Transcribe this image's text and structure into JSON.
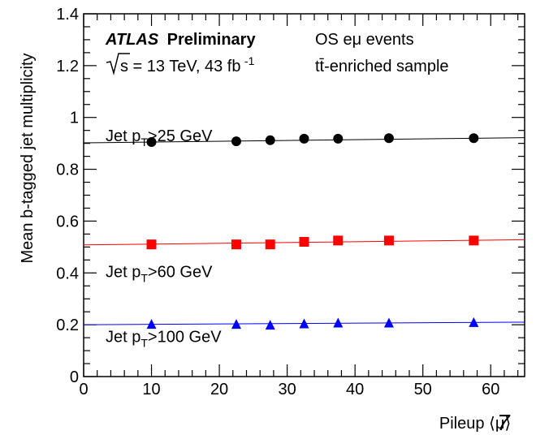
{
  "chart_data": {
    "type": "scatter",
    "title": "",
    "xlabel": "Pileup ⟨μ⟩",
    "ylabel": "Mean b-tagged jet multiplicity",
    "xlim": [
      0,
      65
    ],
    "ylim": [
      0,
      1.4
    ],
    "x_ticks": [
      "0",
      "10",
      "20",
      "30",
      "40",
      "50",
      "60"
    ],
    "y_ticks": [
      "0",
      "0.2",
      "0.4",
      "0.6",
      "0.8",
      "1",
      "1.2",
      "1.4"
    ],
    "grid": false,
    "legend": "none",
    "series": [
      {
        "name": "Jet pT>25 GeV",
        "label_main": "Jet p",
        "label_sub": "T",
        "label_rest": ">25 GeV",
        "label_y": 0.93,
        "marker": "circle",
        "color": "#000000",
        "x": [
          10,
          22.5,
          27.5,
          32.5,
          37.5,
          45,
          57.5
        ],
        "values": [
          0.905,
          0.908,
          0.912,
          0.918,
          0.918,
          0.92,
          0.92
        ],
        "fit": [
          0.902,
          0.922
        ]
      },
      {
        "name": "Jet pT>60 GeV",
        "label_main": "Jet p",
        "label_sub": "T",
        "label_rest": ">60 GeV",
        "label_y": 0.405,
        "marker": "square",
        "color": "#ff0000",
        "x": [
          10,
          22.5,
          27.5,
          32.5,
          37.5,
          45,
          57.5
        ],
        "values": [
          0.51,
          0.51,
          0.51,
          0.52,
          0.525,
          0.525,
          0.525
        ],
        "fit": [
          0.508,
          0.528
        ]
      },
      {
        "name": "Jet pT>100 GeV",
        "label_main": "Jet p",
        "label_sub": "T",
        "label_rest": ">100 GeV",
        "label_y": 0.155,
        "marker": "triangle",
        "color": "#0000ff",
        "x": [
          10,
          22.5,
          27.5,
          32.5,
          37.5,
          45,
          57.5
        ],
        "values": [
          0.2,
          0.2,
          0.197,
          0.202,
          0.205,
          0.205,
          0.207
        ],
        "fit": [
          0.2,
          0.21
        ]
      }
    ],
    "annotations": {
      "atlas": "ATLAS",
      "preliminary": "Preliminary",
      "sqrt_s": "s = 13 TeV, 43 fb",
      "lumi_exp": "-1",
      "selection": "OS eμ events",
      "sample": "tt̄-enriched sample"
    }
  },
  "page_number": "7"
}
